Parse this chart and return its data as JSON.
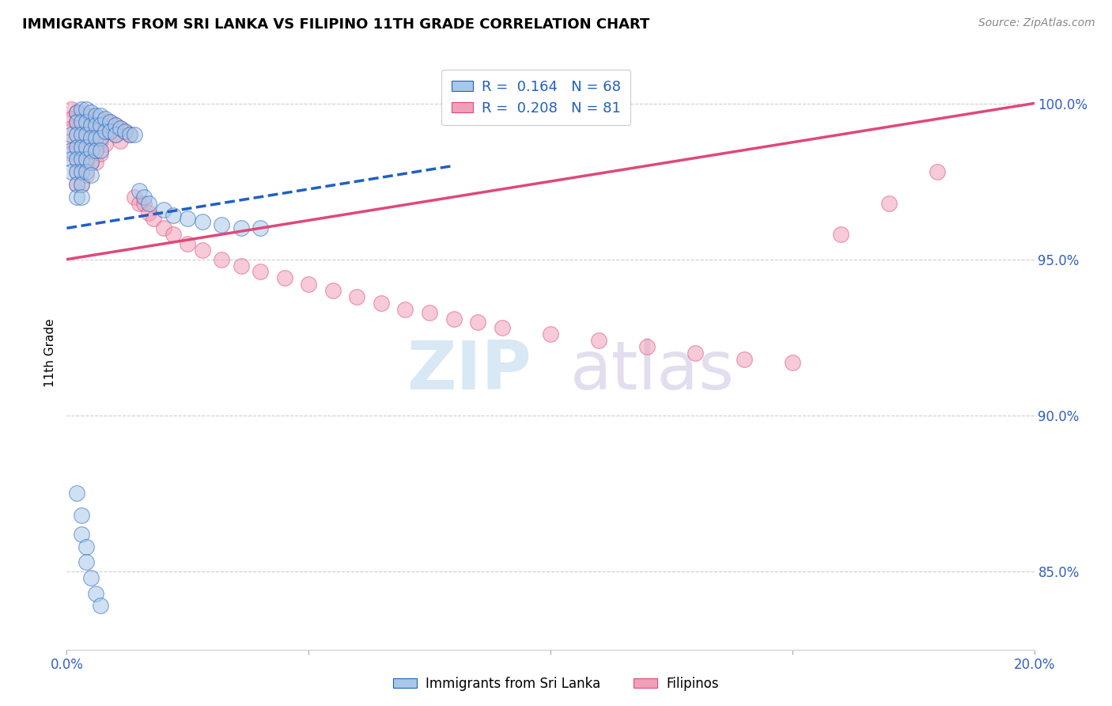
{
  "title": "IMMIGRANTS FROM SRI LANKA VS FILIPINO 11TH GRADE CORRELATION CHART",
  "source": "Source: ZipAtlas.com",
  "ylabel": "11th Grade",
  "y_ticks": [
    0.85,
    0.9,
    0.95,
    1.0
  ],
  "y_tick_labels": [
    "85.0%",
    "90.0%",
    "95.0%",
    "100.0%"
  ],
  "x_range": [
    0.0,
    0.2
  ],
  "y_range": [
    0.825,
    1.015
  ],
  "legend1_label": "Immigrants from Sri Lanka",
  "legend2_label": "Filipinos",
  "R1": 0.164,
  "N1": 68,
  "R2": 0.208,
  "N2": 81,
  "color_blue": "#a8c8e8",
  "color_pink": "#f0a0b8",
  "color_blue_line": "#2060c0",
  "color_pink_line": "#e04878",
  "sl_line_x0": 0.0,
  "sl_line_y0": 0.96,
  "sl_line_x1": 0.08,
  "sl_line_y1": 0.98,
  "fi_line_x0": 0.0,
  "fi_line_y0": 0.95,
  "fi_line_x1": 0.2,
  "fi_line_y1": 1.0,
  "sri_lanka_x": [
    0.001,
    0.001,
    0.001,
    0.001,
    0.002,
    0.002,
    0.002,
    0.002,
    0.002,
    0.002,
    0.002,
    0.002,
    0.003,
    0.003,
    0.003,
    0.003,
    0.003,
    0.003,
    0.003,
    0.003,
    0.004,
    0.004,
    0.004,
    0.004,
    0.004,
    0.004,
    0.005,
    0.005,
    0.005,
    0.005,
    0.005,
    0.005,
    0.006,
    0.006,
    0.006,
    0.006,
    0.007,
    0.007,
    0.007,
    0.007,
    0.008,
    0.008,
    0.009,
    0.009,
    0.01,
    0.01,
    0.011,
    0.012,
    0.013,
    0.014,
    0.015,
    0.016,
    0.017,
    0.02,
    0.022,
    0.025,
    0.028,
    0.032,
    0.036,
    0.04,
    0.002,
    0.003,
    0.003,
    0.004,
    0.004,
    0.005,
    0.006,
    0.007
  ],
  "sri_lanka_y": [
    0.99,
    0.985,
    0.982,
    0.978,
    0.997,
    0.994,
    0.99,
    0.986,
    0.982,
    0.978,
    0.974,
    0.97,
    0.998,
    0.994,
    0.99,
    0.986,
    0.982,
    0.978,
    0.974,
    0.97,
    0.998,
    0.994,
    0.99,
    0.986,
    0.982,
    0.978,
    0.997,
    0.993,
    0.989,
    0.985,
    0.981,
    0.977,
    0.996,
    0.993,
    0.989,
    0.985,
    0.996,
    0.993,
    0.989,
    0.985,
    0.995,
    0.991,
    0.994,
    0.991,
    0.993,
    0.99,
    0.992,
    0.991,
    0.99,
    0.99,
    0.972,
    0.97,
    0.968,
    0.966,
    0.964,
    0.963,
    0.962,
    0.961,
    0.96,
    0.96,
    0.875,
    0.868,
    0.862,
    0.858,
    0.853,
    0.848,
    0.843,
    0.839
  ],
  "filipino_x": [
    0.001,
    0.001,
    0.001,
    0.001,
    0.001,
    0.002,
    0.002,
    0.002,
    0.002,
    0.002,
    0.002,
    0.002,
    0.003,
    0.003,
    0.003,
    0.003,
    0.003,
    0.003,
    0.003,
    0.004,
    0.004,
    0.004,
    0.004,
    0.004,
    0.004,
    0.005,
    0.005,
    0.005,
    0.005,
    0.005,
    0.006,
    0.006,
    0.006,
    0.006,
    0.006,
    0.007,
    0.007,
    0.007,
    0.007,
    0.008,
    0.008,
    0.008,
    0.009,
    0.009,
    0.01,
    0.01,
    0.011,
    0.011,
    0.012,
    0.013,
    0.014,
    0.015,
    0.016,
    0.017,
    0.018,
    0.02,
    0.022,
    0.025,
    0.028,
    0.032,
    0.036,
    0.04,
    0.045,
    0.05,
    0.055,
    0.06,
    0.065,
    0.07,
    0.075,
    0.08,
    0.085,
    0.09,
    0.1,
    0.11,
    0.12,
    0.13,
    0.14,
    0.15,
    0.16,
    0.17,
    0.18
  ],
  "filipino_y": [
    0.998,
    0.995,
    0.992,
    0.988,
    0.984,
    0.997,
    0.994,
    0.99,
    0.986,
    0.982,
    0.978,
    0.974,
    0.997,
    0.994,
    0.99,
    0.986,
    0.982,
    0.978,
    0.974,
    0.996,
    0.993,
    0.989,
    0.985,
    0.981,
    0.977,
    0.996,
    0.993,
    0.989,
    0.985,
    0.981,
    0.995,
    0.993,
    0.989,
    0.985,
    0.981,
    0.995,
    0.992,
    0.988,
    0.984,
    0.994,
    0.991,
    0.987,
    0.994,
    0.991,
    0.993,
    0.99,
    0.992,
    0.988,
    0.991,
    0.99,
    0.97,
    0.968,
    0.968,
    0.965,
    0.963,
    0.96,
    0.958,
    0.955,
    0.953,
    0.95,
    0.948,
    0.946,
    0.944,
    0.942,
    0.94,
    0.938,
    0.936,
    0.934,
    0.933,
    0.931,
    0.93,
    0.928,
    0.926,
    0.924,
    0.922,
    0.92,
    0.918,
    0.917,
    0.958,
    0.968,
    0.978
  ]
}
